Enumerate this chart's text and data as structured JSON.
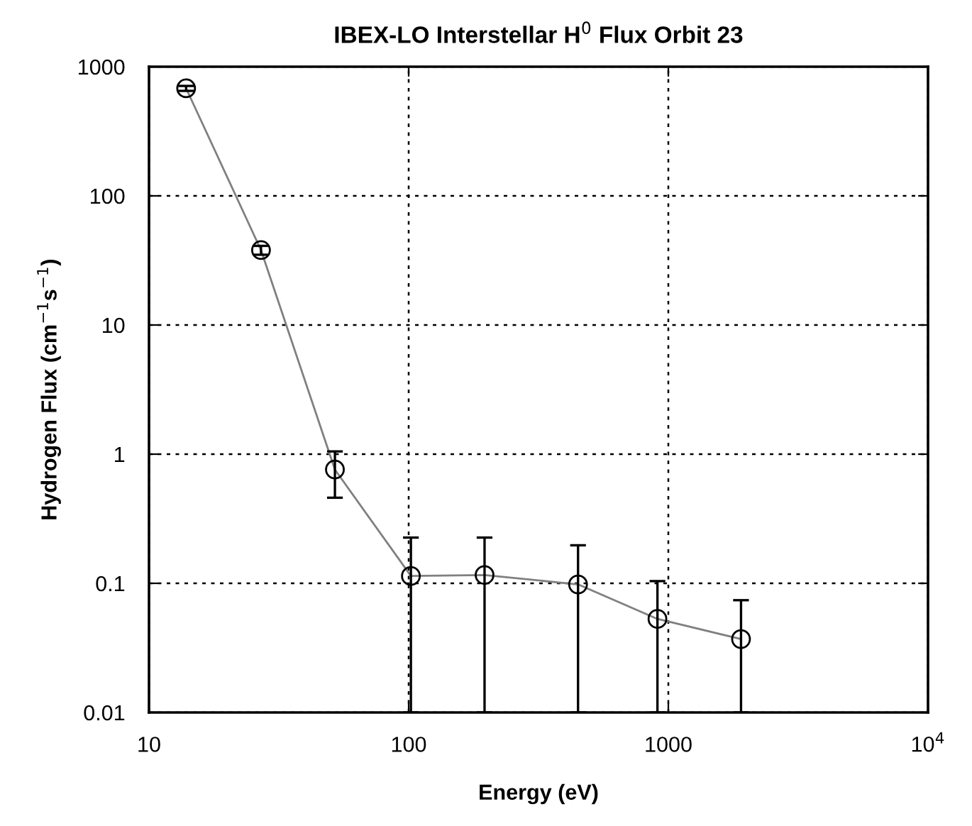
{
  "chart_data": {
    "type": "line",
    "title": "IBEX-LO Interstellar H$^{0}$ Flux Orbit 23",
    "xlabel": "Energy (eV)",
    "ylabel": "Hydrogen Flux (cm$^{−1}$s$^{−1}$)",
    "log": "xy",
    "x": [
      13.9,
      27,
      52,
      102,
      196,
      449,
      908,
      1905
    ],
    "series": [
      {
        "color": "#808080",
        "values": [
          680,
          38,
          0.76,
          0.114,
          0.116,
          0.098,
          0.053,
          0.037
        ],
        "errors": [
          [
            650,
            710
          ],
          [
            35,
            41
          ],
          [
            0.46,
            1.05
          ],
          [
            0.01,
            0.226
          ],
          [
            0.01,
            0.226
          ],
          [
            0.01,
            0.197
          ],
          [
            0.01,
            0.104
          ],
          [
            0.01,
            0.074
          ]
        ]
      }
    ],
    "xlim": [
      10,
      10000
    ],
    "xticks": [
      10,
      100,
      1000,
      {
        "value": 10000,
        "label": "10$^{4}$"
      }
    ],
    "ylim": [
      0.01,
      1000
    ],
    "yticks": [
      0.01,
      0.1,
      1,
      10,
      100,
      1000
    ],
    "grid": true,
    "marker": "circle",
    "line_style": "solid",
    "legend": false
  }
}
